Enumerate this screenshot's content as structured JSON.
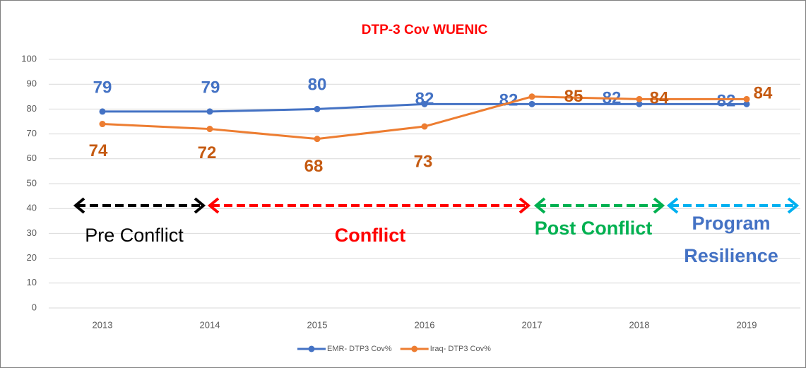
{
  "chart_data": {
    "type": "line",
    "title": "DTP-3 Cov WUENIC",
    "categories": [
      "2013",
      "2014",
      "2015",
      "2016",
      "2017",
      "2018",
      "2019"
    ],
    "series": [
      {
        "name": "EMR- DTP3 Cov%",
        "color": "#4472c4",
        "label_color": "#4472c4",
        "values": [
          79,
          79,
          80,
          82,
          82,
          82,
          82
        ]
      },
      {
        "name": "Iraq- DTP3 Cov%",
        "color": "#ed7d31",
        "label_color": "#c55a11",
        "values": [
          74,
          72,
          68,
          73,
          85,
          84,
          84
        ]
      }
    ],
    "ylim": [
      0,
      100
    ],
    "yticks": [
      0,
      10,
      20,
      30,
      40,
      50,
      60,
      70,
      80,
      90,
      100
    ],
    "grid": true,
    "legend": "bottom",
    "annotations": [
      {
        "lines": [
          "Pre Conflict"
        ],
        "color": "#000000"
      },
      {
        "lines": [
          "Conflict"
        ],
        "color": "#ff0000"
      },
      {
        "lines": [
          "Post Conflict"
        ],
        "color": "#00b050"
      },
      {
        "lines": [
          "Program",
          "Resilience"
        ],
        "color": "#4472c4"
      }
    ]
  }
}
